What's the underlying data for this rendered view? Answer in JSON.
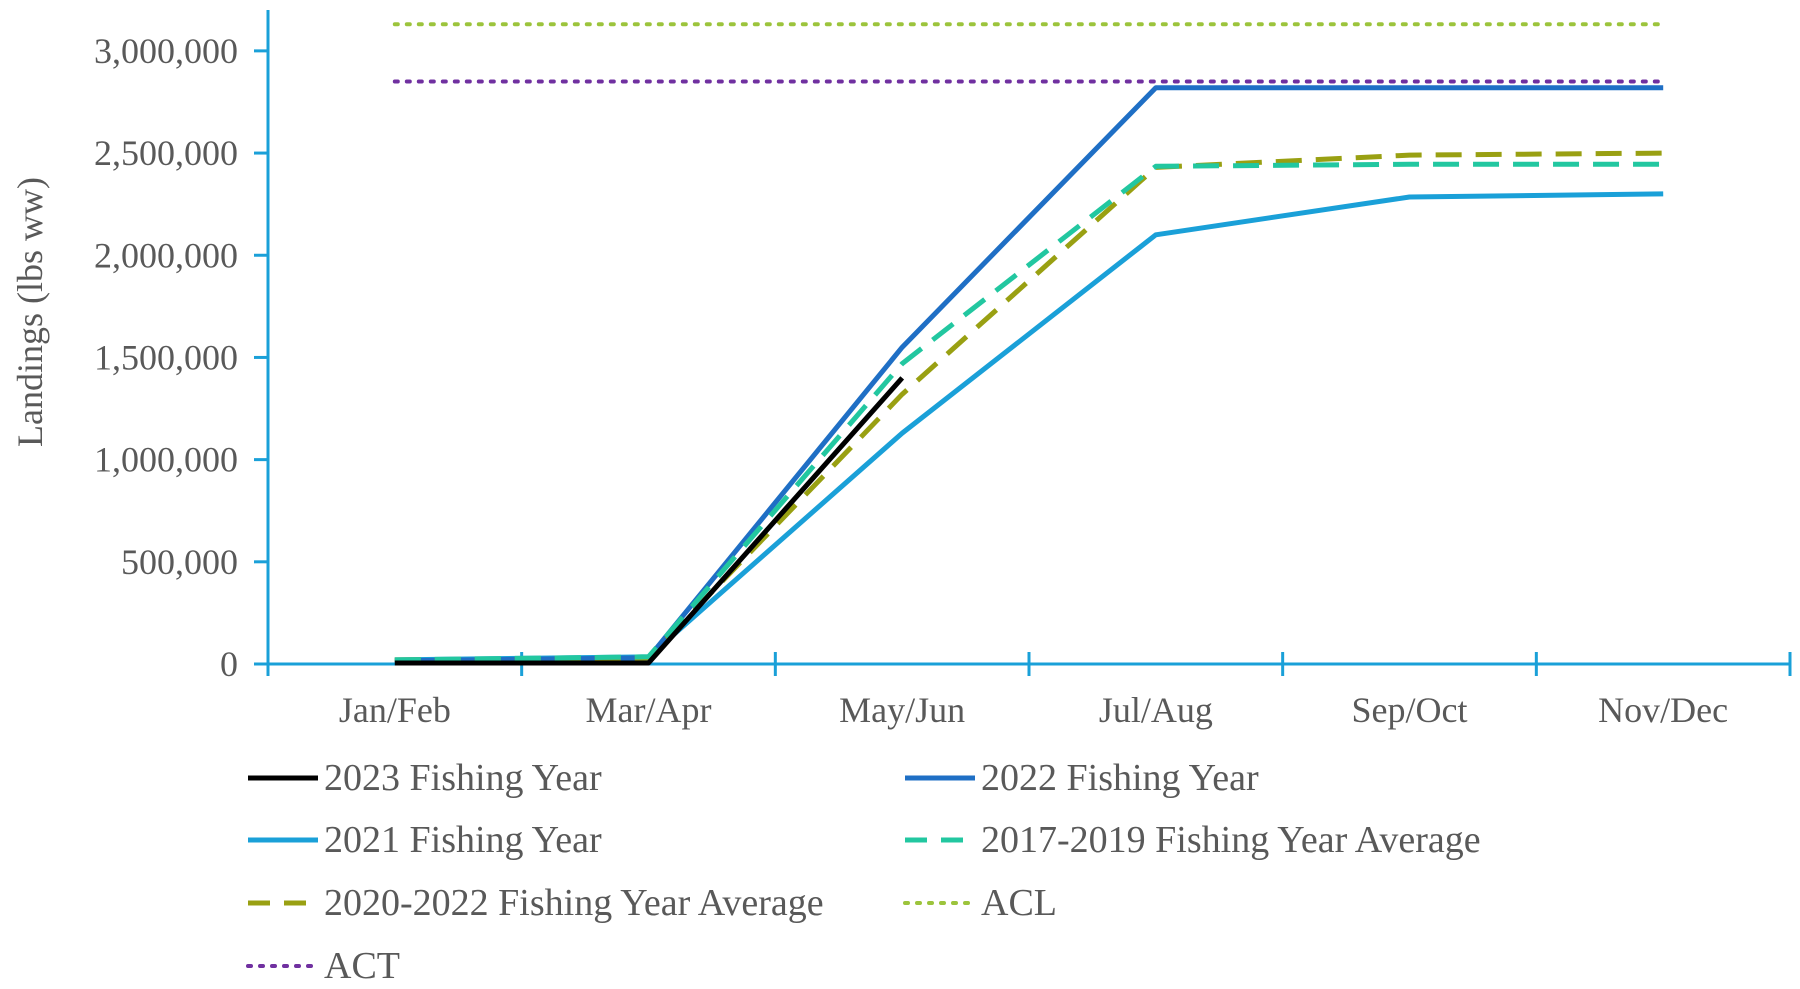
{
  "chart_data": {
    "type": "line",
    "title": "",
    "xlabel": "",
    "ylabel": "Landings (lbs ww)",
    "categories": [
      "Jan/Feb",
      "Mar/Apr",
      "May/Jun",
      "Jul/Aug",
      "Sep/Oct",
      "Nov/Dec"
    ],
    "ylim": [
      0,
      3200000
    ],
    "yticks": [
      0,
      500000,
      1000000,
      1500000,
      2000000,
      2500000,
      3000000
    ],
    "ytick_labels": [
      "0",
      "500,000",
      "1,000,000",
      "1,500,000",
      "2,000,000",
      "2,500,000",
      "3,000,000"
    ],
    "grid": false,
    "legend_position": "bottom",
    "axis_color": "#1aa0d8",
    "series": [
      {
        "name": "2023 Fishing Year",
        "color": "#000000",
        "style": "solid",
        "values": [
          5000,
          5000,
          1400000,
          null,
          null,
          null
        ]
      },
      {
        "name": "2022 Fishing Year",
        "color": "#1f6fc5",
        "style": "solid",
        "values": [
          15000,
          30000,
          1550000,
          2820000,
          2820000,
          2820000
        ]
      },
      {
        "name": "2021 Fishing Year",
        "color": "#1aa0d8",
        "style": "solid",
        "values": [
          20000,
          35000,
          1130000,
          2100000,
          2285000,
          2300000
        ]
      },
      {
        "name": "2017-2019 Fishing Year Average",
        "color": "#22c7a0",
        "style": "dashed",
        "values": [
          20000,
          35000,
          1470000,
          2435000,
          2445000,
          2445000
        ]
      },
      {
        "name": "2020-2022 Fishing Year Average",
        "color": "#99a012",
        "style": "dashed",
        "values": [
          20000,
          30000,
          1320000,
          2430000,
          2490000,
          2500000
        ]
      },
      {
        "name": "ACL",
        "color": "#9cc43c",
        "style": "dotted",
        "values": [
          3130000,
          3130000,
          3130000,
          3130000,
          3130000,
          3130000
        ]
      },
      {
        "name": "ACT",
        "color": "#7030a0",
        "style": "dotted",
        "values": [
          2850000,
          2850000,
          2850000,
          2850000,
          2850000,
          2850000
        ]
      }
    ]
  }
}
